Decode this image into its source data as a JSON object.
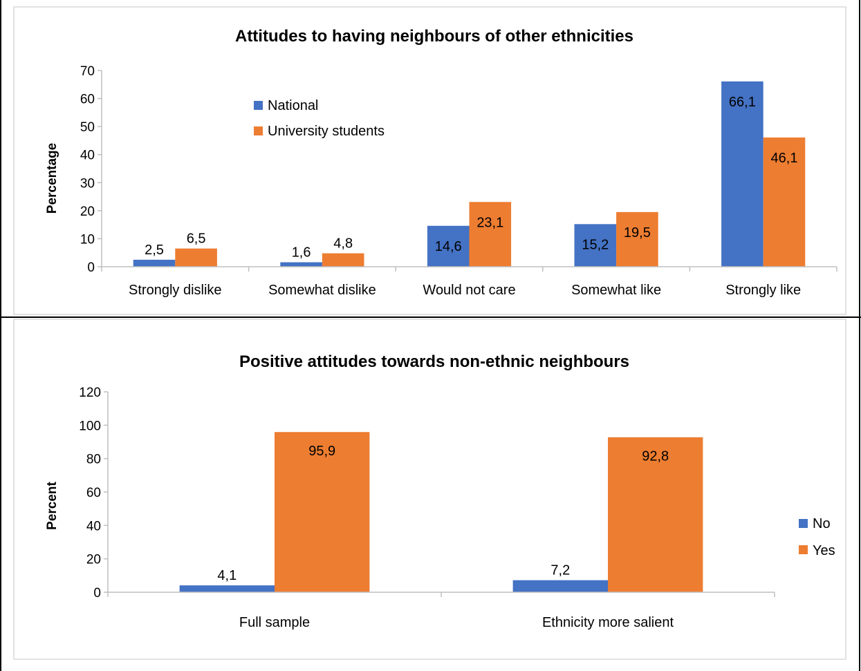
{
  "colors": {
    "blue": "#4472C4",
    "orange": "#ED7D31",
    "axis": "#BFBFBF",
    "frame": "#000000"
  },
  "chart_data": [
    {
      "type": "bar",
      "title": "Attitudes to having neighbours of other ethnicities",
      "xlabel": "",
      "ylabel": "Percentage",
      "ylim": [
        0,
        70
      ],
      "yticks": [
        0,
        10,
        20,
        30,
        40,
        50,
        60,
        70
      ],
      "grid": false,
      "legend_position": "top-left",
      "categories": [
        "Strongly dislike",
        "Somewhat dislike",
        "Would not care",
        "Somewhat like",
        "Strongly like"
      ],
      "series": [
        {
          "name": "National",
          "color": "#4472C4",
          "values": [
            2.5,
            1.6,
            14.6,
            15.2,
            66.1
          ],
          "labels": [
            "2,5",
            "1,6",
            "14,6",
            "15,2",
            "66,1"
          ]
        },
        {
          "name": "University students",
          "color": "#ED7D31",
          "values": [
            6.5,
            4.8,
            23.1,
            19.5,
            46.1
          ],
          "labels": [
            "6,5",
            "4,8",
            "23,1",
            "19,5",
            "46,1"
          ]
        }
      ]
    },
    {
      "type": "bar",
      "title": "Positive attitudes towards non-ethnic neighbours",
      "xlabel": "",
      "ylabel": "Percent",
      "ylim": [
        0,
        120
      ],
      "yticks": [
        0,
        20,
        40,
        60,
        80,
        100,
        120
      ],
      "grid": false,
      "legend_position": "right",
      "categories": [
        "Full sample",
        "Ethnicity more salient"
      ],
      "series": [
        {
          "name": "No",
          "color": "#4472C4",
          "values": [
            4.1,
            7.2
          ],
          "labels": [
            "4,1",
            "7,2"
          ]
        },
        {
          "name": "Yes",
          "color": "#ED7D31",
          "values": [
            95.9,
            92.8
          ],
          "labels": [
            "95,9",
            "92,8"
          ]
        }
      ]
    }
  ]
}
